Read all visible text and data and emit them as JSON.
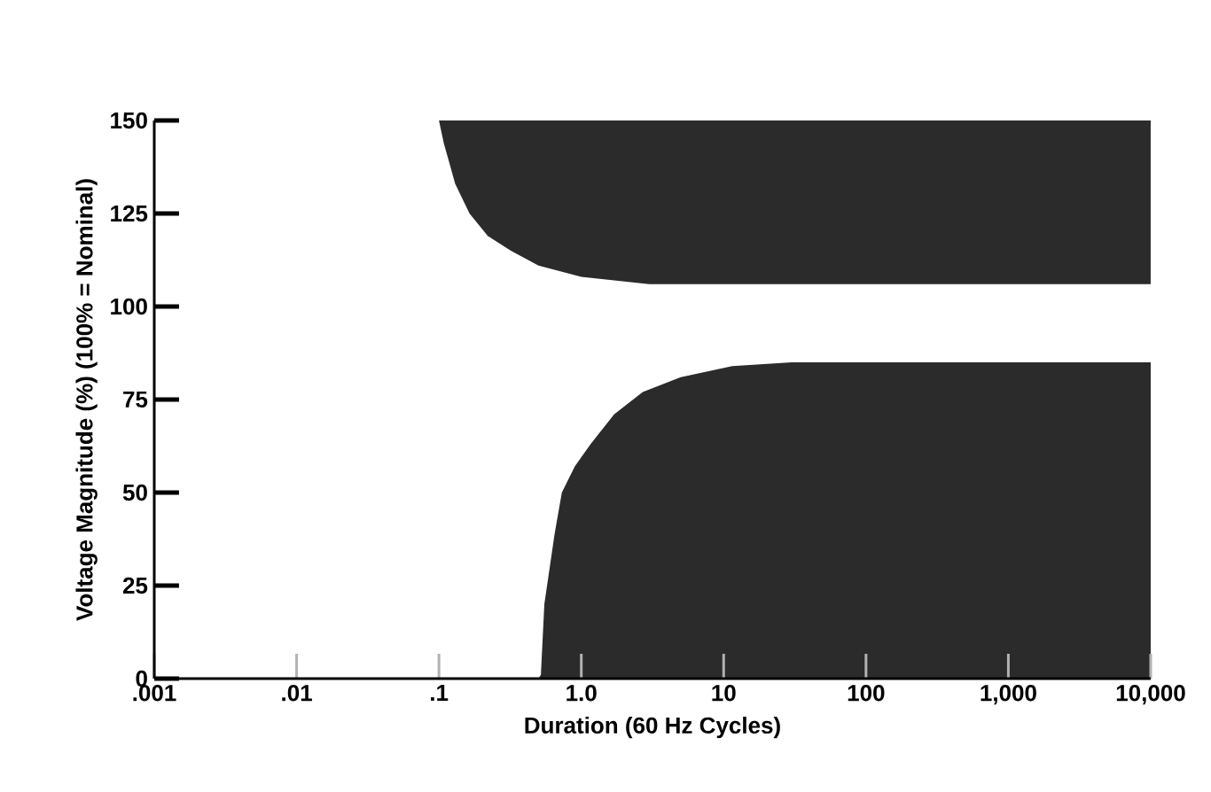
{
  "chart_data": {
    "type": "area",
    "xlabel": "Duration (60 Hz Cycles)",
    "ylabel": "Voltage Magnitude (%) (100% = Nominal)",
    "log": "x",
    "grid": false,
    "xlim": [
      0.001,
      10000
    ],
    "ylim": [
      0,
      150
    ],
    "xticks": [
      {
        "value": 0.001,
        "label": ".001"
      },
      {
        "value": 0.01,
        "label": ".01"
      },
      {
        "value": 0.1,
        "label": ".1"
      },
      {
        "value": 1,
        "label": "1.0"
      },
      {
        "value": 10,
        "label": "10"
      },
      {
        "value": 100,
        "label": "100"
      },
      {
        "value": 1000,
        "label": "1,000"
      },
      {
        "value": 10000,
        "label": "10,000"
      }
    ],
    "yticks": [
      0,
      25,
      50,
      75,
      100,
      125,
      150
    ],
    "series": [
      {
        "color": "#2b2b2b",
        "x": [
          0.1,
          0.108,
          0.13,
          0.164,
          0.22,
          0.32,
          0.5,
          1,
          3,
          10000,
          10000
        ],
        "values": [
          150,
          144,
          133,
          125,
          119,
          115,
          111,
          108,
          106,
          106,
          150
        ]
      },
      {
        "color": "#2b2b2b",
        "x": [
          0.5,
          0.52,
          0.55,
          0.65,
          0.73,
          0.9,
          1.16,
          1.7,
          2.7,
          5,
          11.5,
          30,
          10000,
          10000
        ],
        "values": [
          0,
          1,
          20,
          39,
          50,
          57,
          63,
          71,
          77,
          81,
          84,
          85,
          85,
          0
        ]
      }
    ]
  }
}
